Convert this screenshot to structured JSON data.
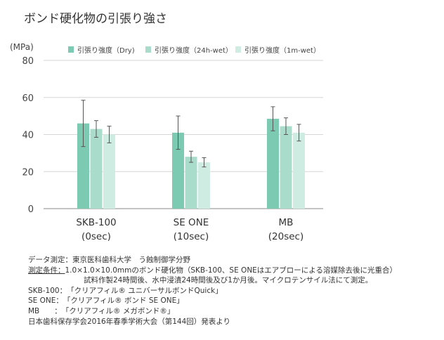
{
  "title": "ボンド硬化物の引張り強さ",
  "chart_data": {
    "type": "bar",
    "ylabel": "(MPa)",
    "ylim": [
      0,
      80
    ],
    "yticks": [
      0,
      20,
      40,
      60,
      80
    ],
    "grid": true,
    "legend_position": "top",
    "categories": [
      {
        "name": "SKB-100",
        "sub": "(0sec)"
      },
      {
        "name": "SE ONE",
        "sub": "(10sec)"
      },
      {
        "name": "MB",
        "sub": "(20sec)"
      }
    ],
    "series": [
      {
        "name": "引張り強度（Dry)",
        "color": "#7dcab3",
        "values": [
          46,
          41,
          48.5
        ],
        "errors": [
          12.5,
          9,
          6.5
        ]
      },
      {
        "name": "引張り強度（24h-wet）",
        "color": "#aadccb",
        "values": [
          43,
          28,
          44.5
        ],
        "errors": [
          4.5,
          3,
          4.5
        ]
      },
      {
        "name": "引張り強度（1m-wet）",
        "color": "#cfece2",
        "values": [
          40,
          25,
          41
        ],
        "errors": [
          4.5,
          2.5,
          4.5
        ]
      }
    ]
  },
  "notes": [
    {
      "label": "データ測定：",
      "text": "東京医科歯科大学　う蝕制御学分野"
    },
    {
      "label": "測定条件：",
      "text": "1.0×1.0×10.0mmのボンド硬化物（SKB-100、SE ONEはエアブローによる溶媒除去後に光重合）"
    },
    {
      "label": "",
      "text": "試料作製24時間後、水中浸漬24時間後及び1か月後。マイクロテンサイル法にて測定。"
    },
    {
      "label": "SKB-100：",
      "text": "「クリアフィル® ユニバーサルボンドQuick」"
    },
    {
      "label": "SE ONE：",
      "text": "「クリアフィル® ボンド SE ONE」"
    },
    {
      "label": "MB　　：",
      "text": "「クリアフィル® メガボンド®」"
    },
    {
      "label": "",
      "text": "日本歯科保存学会2016年春季学術大会（第144回）発表より"
    }
  ]
}
